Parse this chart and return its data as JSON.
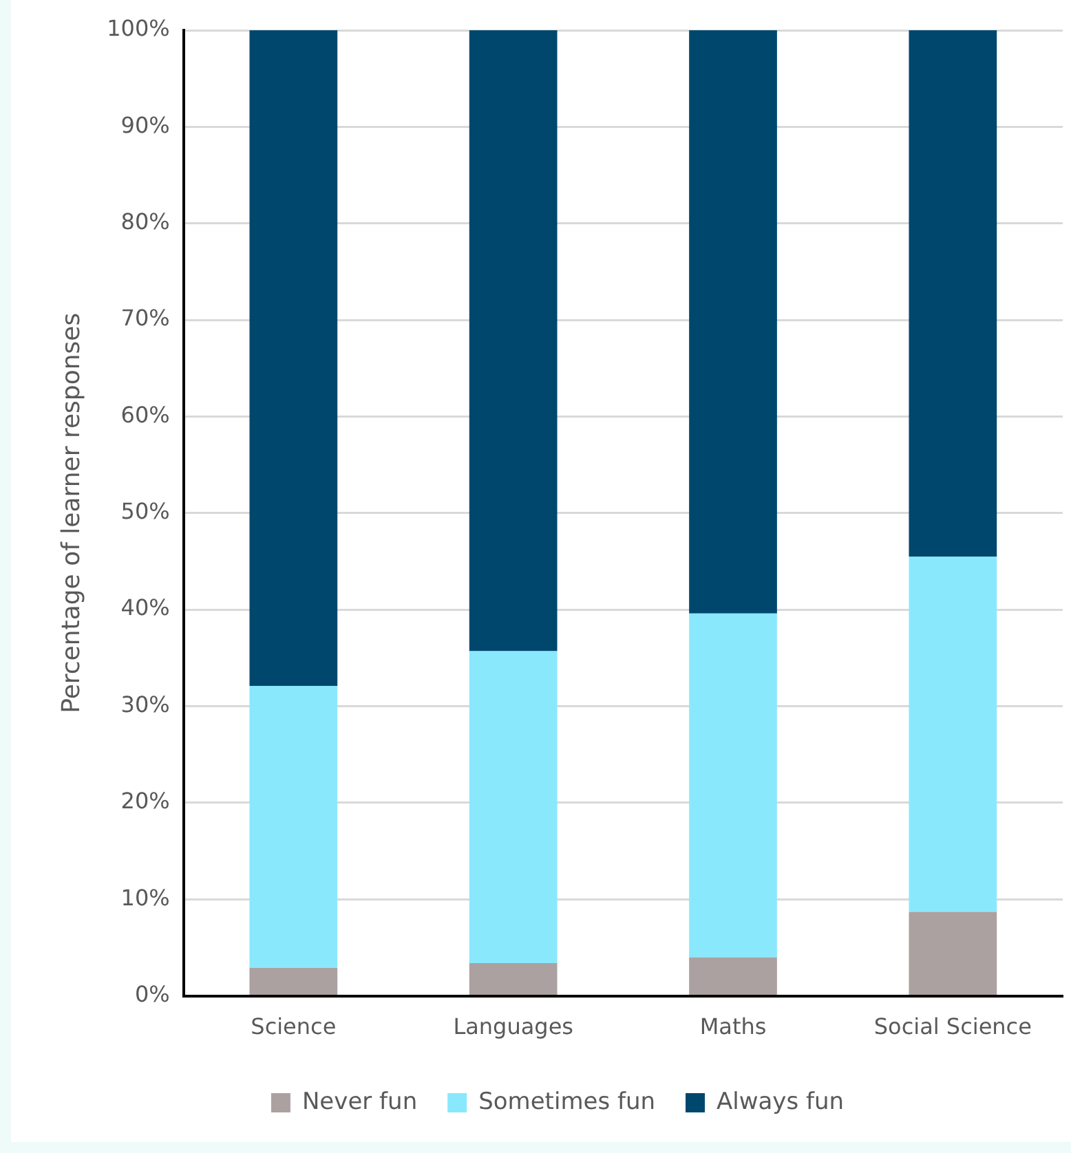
{
  "chart_data": {
    "type": "bar",
    "stacked": true,
    "ylabel": "Percentage of learner responses",
    "categories": [
      "Science",
      "Languages",
      "Maths",
      "Social Science"
    ],
    "series": [
      {
        "name": "Never fun",
        "color": "#aba1a0",
        "values": [
          2.9,
          3.4,
          4.0,
          8.7
        ]
      },
      {
        "name": "Sometimes fun",
        "color": "#8ae8fd",
        "values": [
          29.2,
          32.3,
          35.6,
          36.8
        ]
      },
      {
        "name": "Always fun",
        "color": "#00476e",
        "values": [
          67.9,
          64.3,
          60.4,
          54.5
        ]
      }
    ],
    "ylim": [
      0,
      100
    ],
    "yticks": [
      {
        "value": 0,
        "label": "0%"
      },
      {
        "value": 10,
        "label": "10%"
      },
      {
        "value": 20,
        "label": "20%"
      },
      {
        "value": 30,
        "label": "30%"
      },
      {
        "value": 40,
        "label": "40%"
      },
      {
        "value": 50,
        "label": "50%"
      },
      {
        "value": 60,
        "label": "60%"
      },
      {
        "value": 70,
        "label": "70%"
      },
      {
        "value": 80,
        "label": "80%"
      },
      {
        "value": 90,
        "label": "90%"
      },
      {
        "value": 100,
        "label": "100%"
      }
    ],
    "grid": "y",
    "legend": "bottom"
  }
}
